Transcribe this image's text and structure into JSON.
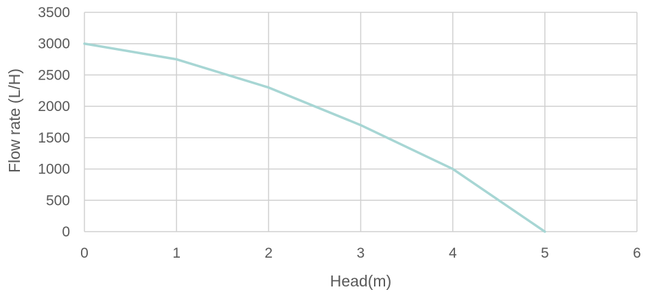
{
  "chart_data": {
    "type": "line",
    "title": "",
    "xlabel": "Head(m)",
    "ylabel": "Flow rate (L/H)",
    "xlim": [
      0,
      6
    ],
    "ylim": [
      0,
      3500
    ],
    "x_ticks": [
      "0",
      "1",
      "2",
      "3",
      "4",
      "5",
      "6"
    ],
    "y_ticks": [
      "0",
      "500",
      "1000",
      "1500",
      "2000",
      "2500",
      "3000",
      "3500"
    ],
    "grid": true,
    "legend": "none",
    "series": [
      {
        "x": [
          0,
          1,
          2,
          3,
          4,
          5
        ],
        "y": [
          3000,
          2750,
          2300,
          1700,
          1000,
          0
        ],
        "color": "#a7d6d4"
      }
    ],
    "colors": {
      "grid": "#d0d0d0",
      "text": "#595959"
    }
  }
}
